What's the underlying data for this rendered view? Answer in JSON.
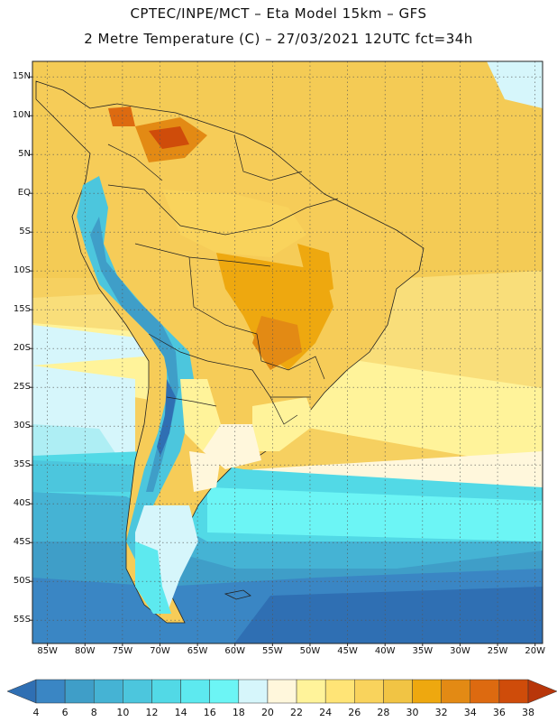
{
  "header": {
    "line1": "CPTEC/INPE/MCT –  Eta Model 15km – GFS",
    "line2": "2 Metre Temperature (C) – 27/03/2021 12UTC fct=34h"
  },
  "map": {
    "lat_labels": [
      "15N",
      "10N",
      "5N",
      "EQ",
      "5S",
      "10S",
      "15S",
      "20S",
      "25S",
      "30S",
      "35S",
      "40S",
      "45S",
      "50S",
      "55S"
    ],
    "lon_labels": [
      "85W",
      "80W",
      "75W",
      "70W",
      "65W",
      "60W",
      "55W",
      "50W",
      "45W",
      "40W",
      "35W",
      "30W",
      "25W",
      "20W"
    ],
    "lat_values": [
      15,
      10,
      5,
      0,
      -5,
      -10,
      -15,
      -20,
      -25,
      -30,
      -35,
      -40,
      -45,
      -50,
      -55
    ],
    "lon_values": [
      -85,
      -80,
      -75,
      -70,
      -65,
      -60,
      -55,
      -50,
      -45,
      -40,
      -35,
      -30,
      -25,
      -20
    ],
    "lat_range": [
      -58,
      17
    ],
    "lon_range": [
      -87,
      -19
    ],
    "grid": true
  },
  "colorbar": {
    "labels": [
      "4",
      "6",
      "8",
      "10",
      "12",
      "14",
      "16",
      "18",
      "20",
      "22",
      "24",
      "26",
      "28",
      "30",
      "32",
      "34",
      "36",
      "38"
    ],
    "colors": [
      "#2f6fb3",
      "#3a86c4",
      "#3f9ec8",
      "#45b3d4",
      "#4cc6dd",
      "#52d9e6",
      "#5de9ef",
      "#6cf5f5",
      "#d6f6fb",
      "#fff7dc",
      "#fff39a",
      "#ffe476",
      "#f9d35c",
      "#f1c444",
      "#eea80f",
      "#e38a14",
      "#dd6a10",
      "#cf4c0a",
      "#b8360a"
    ]
  }
}
